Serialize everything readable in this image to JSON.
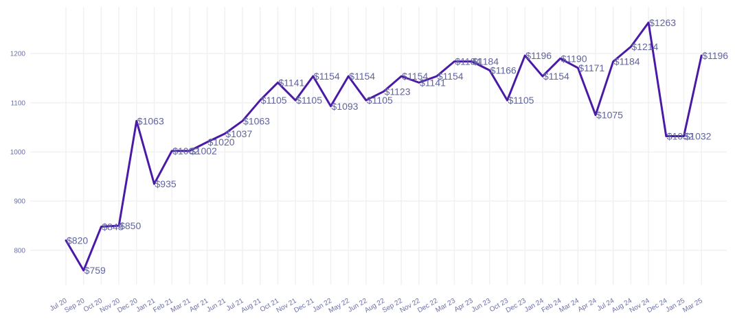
{
  "chart_data": {
    "type": "line",
    "title": "",
    "xlabel": "",
    "ylabel": "",
    "ylim": [
      730,
      1295
    ],
    "yticks": [
      800,
      900,
      1000,
      1100,
      1200
    ],
    "grid": true,
    "line_color": "#4a1aa6",
    "label_prefix": "$",
    "x": [
      "Jul 20",
      "Sep 20",
      "Oct 20",
      "Nov 20",
      "Dec 20",
      "Jan 21",
      "Feb 21",
      "Mar 21",
      "Apr 21",
      "Jun 21",
      "Jul 21",
      "Aug 21",
      "Oct 21",
      "Nov 21",
      "Dec 21",
      "Jan 22",
      "May 22",
      "Jun 22",
      "Aug 22",
      "Sep 22",
      "Nov 22",
      "Dec 22",
      "Mar 23",
      "Apr 23",
      "Jun 23",
      "Oct 23",
      "Dec 23",
      "Jan 24",
      "Feb 24",
      "Mar 24",
      "Apr 24",
      "Jul 24",
      "Aug 24",
      "Nov 24",
      "Dec 24",
      "Jan 25",
      "Mar 25"
    ],
    "values": [
      820,
      759,
      848,
      850,
      1063,
      935,
      1002,
      1002,
      1020,
      1037,
      1063,
      1105,
      1141,
      1105,
      1154,
      1093,
      1154,
      1105,
      1123,
      1154,
      1141,
      1154,
      1184,
      1184,
      1166,
      1105,
      1196,
      1154,
      1190,
      1171,
      1075,
      1184,
      1214,
      1263,
      1032,
      1032,
      1196
    ]
  }
}
